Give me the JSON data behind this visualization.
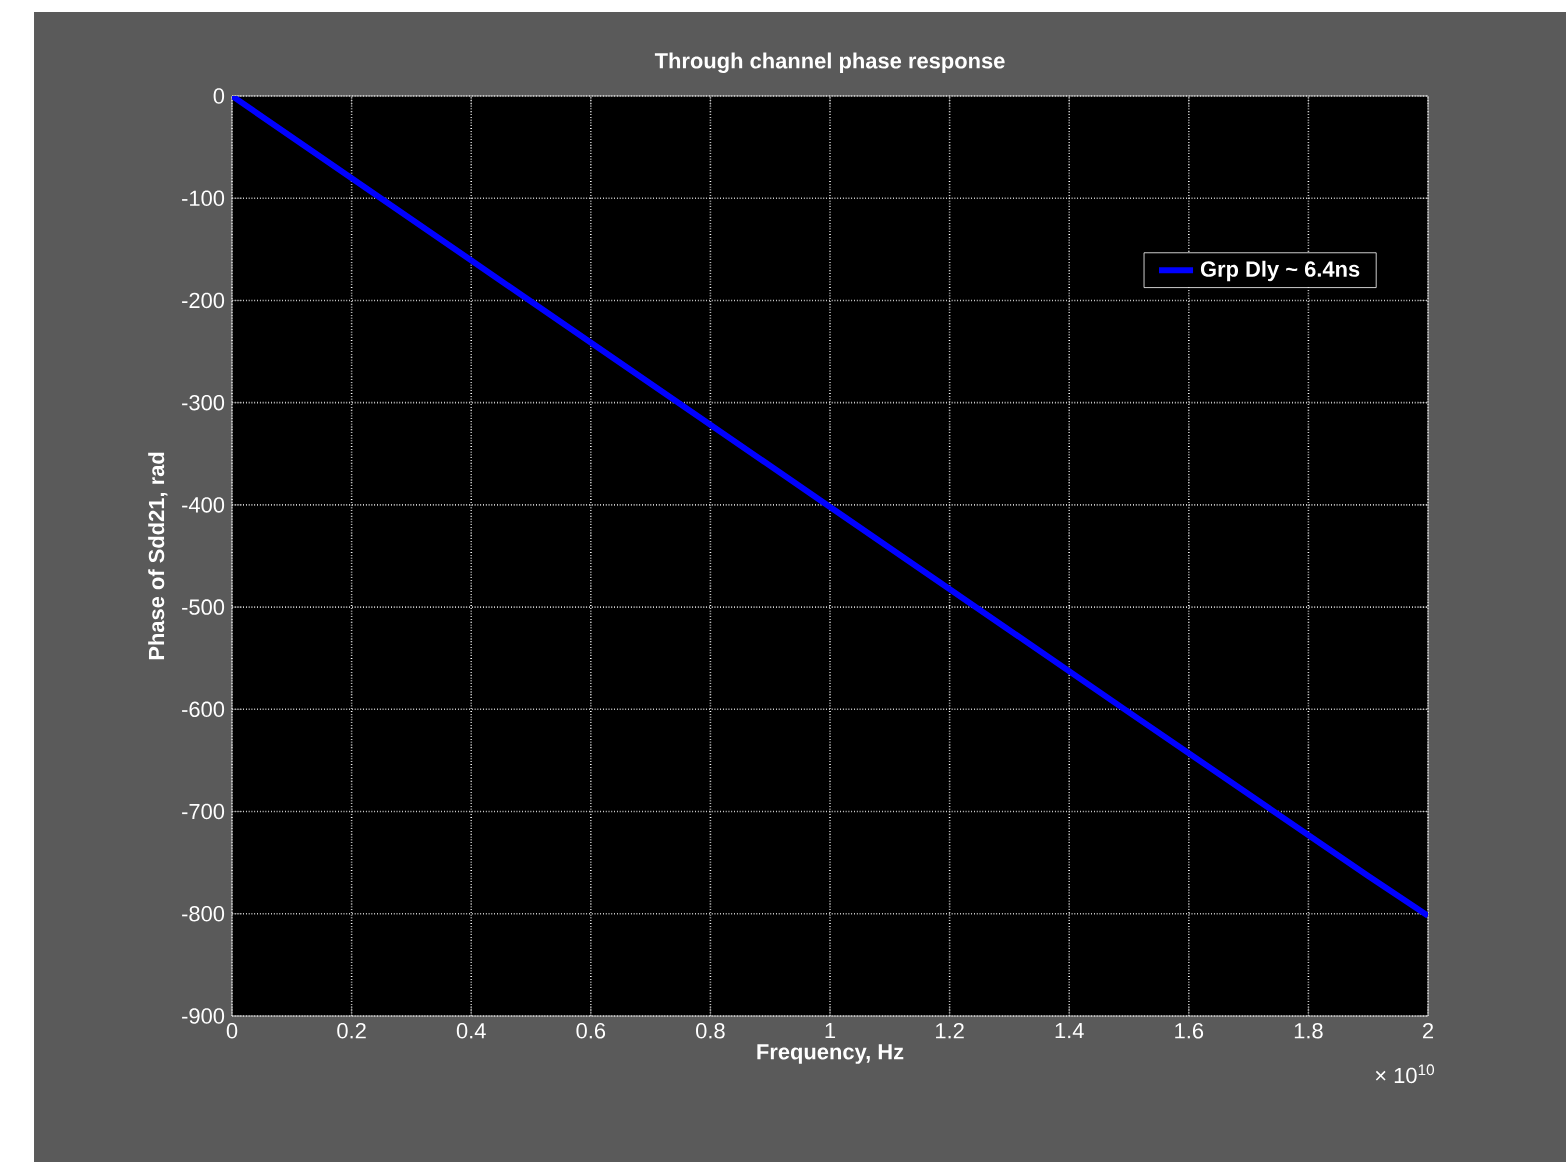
{
  "chart_data": {
    "type": "line",
    "title": "Through channel phase response",
    "xlabel": "Frequency, Hz",
    "ylabel": "Phase of Sdd21, rad",
    "annotations": [
      "× 10$^{10}$"
    ],
    "x": [
      0,
      0.5,
      1,
      1.5,
      1.9,
      2
    ],
    "series": [
      {
        "name": "Grp Dly ~ 6.4ns",
        "color": "#0000ff",
        "values": [
          0,
          -201,
          -402,
          -603,
          -763,
          -802
        ]
      }
    ],
    "xlim": [
      0,
      2
    ],
    "xticks": [
      0,
      0.2,
      0.4,
      0.6,
      0.8,
      1,
      1.2,
      1.4,
      1.6,
      1.8,
      2
    ],
    "ylim": [
      -900,
      0
    ],
    "yticks": [
      -900,
      -800,
      -700,
      -600,
      -500,
      -400,
      -300,
      -200,
      -100,
      0
    ],
    "grid": true,
    "legend": "top right",
    "marker": "none",
    "line_style": "solid"
  }
}
